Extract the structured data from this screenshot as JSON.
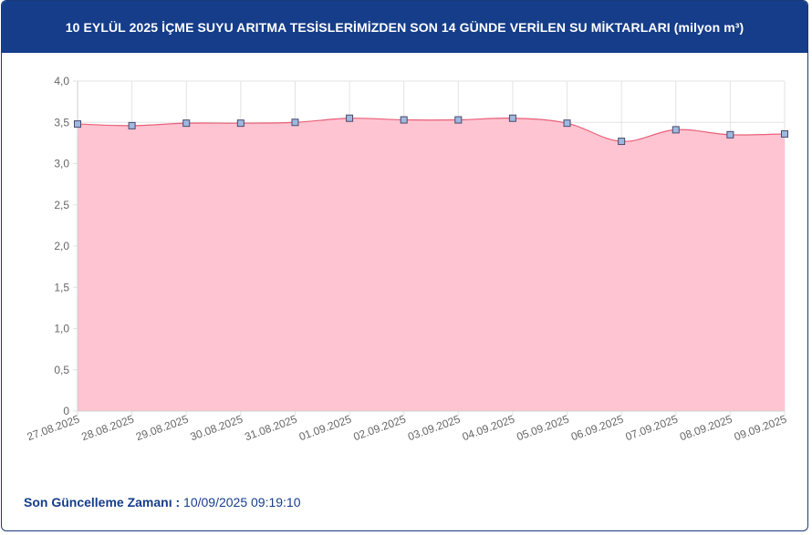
{
  "header": {
    "title": "10 EYLÜL 2025 İÇME SUYU ARITMA TESİSLERİMİZDEN SON 14 GÜNDE VERİLEN SU MİKTARLARI (milyon m³)"
  },
  "footer": {
    "label": "Son Güncelleme Zamanı :",
    "value": "10/09/2025 09:19:10"
  },
  "colors": {
    "header_bg": "#153d8a",
    "area_fill": "#ffc1cf",
    "line": "#e8607a",
    "marker_fill": "#9fb8e0",
    "grid": "#e3e3e3"
  },
  "chart_data": {
    "type": "area",
    "title": "",
    "xlabel": "",
    "ylabel": "",
    "categories": [
      "27.08.2025",
      "28.08.2025",
      "29.08.2025",
      "30.08.2025",
      "31.08.2025",
      "01.09.2025",
      "02.09.2025",
      "03.09.2025",
      "04.09.2025",
      "05.09.2025",
      "06.09.2025",
      "07.09.2025",
      "08.09.2025",
      "09.09.2025"
    ],
    "values": [
      3.48,
      3.46,
      3.49,
      3.49,
      3.5,
      3.55,
      3.53,
      3.53,
      3.55,
      3.49,
      3.27,
      3.41,
      3.35,
      3.36
    ],
    "ylim": [
      0,
      4
    ],
    "yticks": [
      "0",
      "0,5",
      "1,0",
      "1,5",
      "2,0",
      "2,5",
      "3,0",
      "3,5",
      "4,0"
    ],
    "ytick_values": [
      0,
      0.5,
      1.0,
      1.5,
      2.0,
      2.5,
      3.0,
      3.5,
      4.0
    ],
    "grid": true,
    "legend": false
  }
}
